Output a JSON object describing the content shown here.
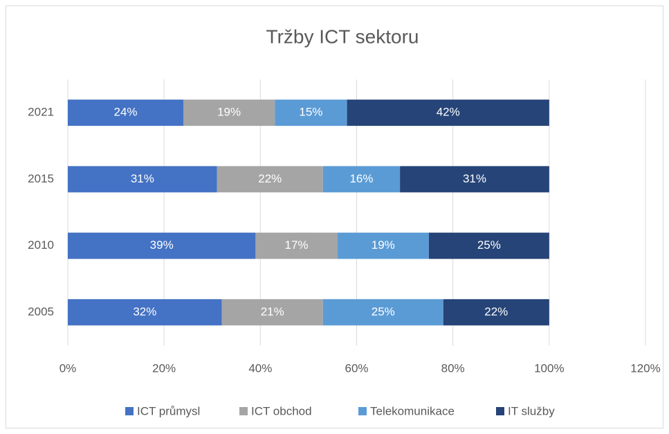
{
  "chart_data": {
    "type": "stacked-barh",
    "title": "Tržby ICT sektoru",
    "categories": [
      "2005",
      "2010",
      "2015",
      "2021"
    ],
    "series": [
      {
        "name": "ICT průmysl",
        "color": "#4472c4",
        "values": [
          32,
          39,
          31,
          24
        ],
        "value_labels": [
          "32%",
          "39%",
          "31%",
          "24%"
        ]
      },
      {
        "name": "ICT obchod",
        "color": "#a5a5a5",
        "values": [
          21,
          17,
          22,
          19
        ],
        "value_labels": [
          "21%",
          "17%",
          "22%",
          "19%"
        ]
      },
      {
        "name": "Telekomunikace",
        "color": "#5b9bd5",
        "values": [
          25,
          19,
          16,
          15
        ],
        "value_labels": [
          "25%",
          "19%",
          "16%",
          "15%"
        ]
      },
      {
        "name": "IT služby",
        "color": "#264478",
        "values": [
          22,
          25,
          31,
          42
        ],
        "value_labels": [
          "22%",
          "25%",
          "31%",
          "42%"
        ]
      }
    ],
    "xlim": [
      0,
      120
    ],
    "xticks": [
      {
        "value": 0,
        "label": "0%"
      },
      {
        "value": 20,
        "label": "20%"
      },
      {
        "value": 40,
        "label": "40%"
      },
      {
        "value": 60,
        "label": "60%"
      },
      {
        "value": 80,
        "label": "80%"
      },
      {
        "value": 100,
        "label": "100%"
      },
      {
        "value": 120,
        "label": "120%"
      }
    ],
    "grid": true,
    "legend": "bottom"
  }
}
